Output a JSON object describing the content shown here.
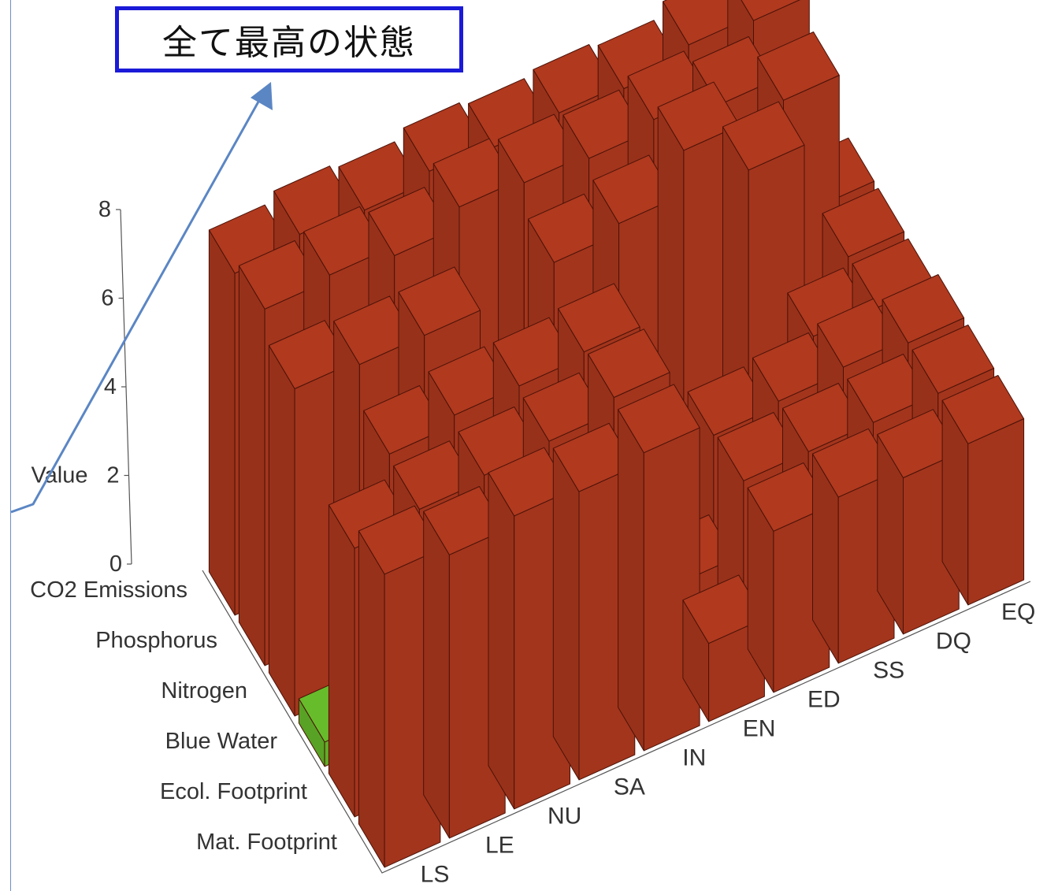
{
  "callout": {
    "text": "全て最高の状態"
  },
  "chart_data": {
    "type": "bar3d",
    "title": "",
    "ylabel": "Value",
    "ylim": [
      0,
      8
    ],
    "yticks": [
      0,
      2,
      4,
      6,
      8
    ],
    "x_categories": [
      "LS",
      "LE",
      "NU",
      "SA",
      "IN",
      "EN",
      "ED",
      "SS",
      "DQ",
      "EQ"
    ],
    "z_categories": [
      "Mat. Footprint",
      "Ecol. Footprint",
      "Blue Water",
      "Nitrogen",
      "Phosphorus",
      "CO2 Emissions"
    ],
    "values": [
      [
        6.0,
        5.8,
        6.0,
        5.9,
        6.1,
        1.6,
        3.3,
        3.4,
        3.2,
        3.3
      ],
      [
        5.5,
        5.7,
        5.8,
        5.9,
        6.2,
        1.8,
        3.3,
        3.3,
        3.3,
        3.3
      ],
      [
        0.5,
        5.8,
        6.0,
        6.0,
        6.1,
        2.3,
        3.2,
        3.3,
        3.4,
        3.3
      ],
      [
        6.7,
        6.6,
        6.6,
        4.0,
        6.9,
        7.1,
        8.0,
        7.0,
        3.0,
        3.0
      ],
      [
        7.3,
        7.4,
        7.2,
        7.6,
        7.5,
        7.4,
        7.6,
        7.3,
        6.8,
        3.0
      ],
      [
        7.0,
        7.2,
        7.1,
        7.3,
        7.2,
        7.3,
        7.2,
        7.5,
        7.4,
        3.0
      ]
    ],
    "bar_color": "#a3351c",
    "low_bar_color": "#5fae28",
    "low_threshold": 1,
    "annotation_line_color": "#5b86c4",
    "grid": false,
    "legend": "none"
  }
}
